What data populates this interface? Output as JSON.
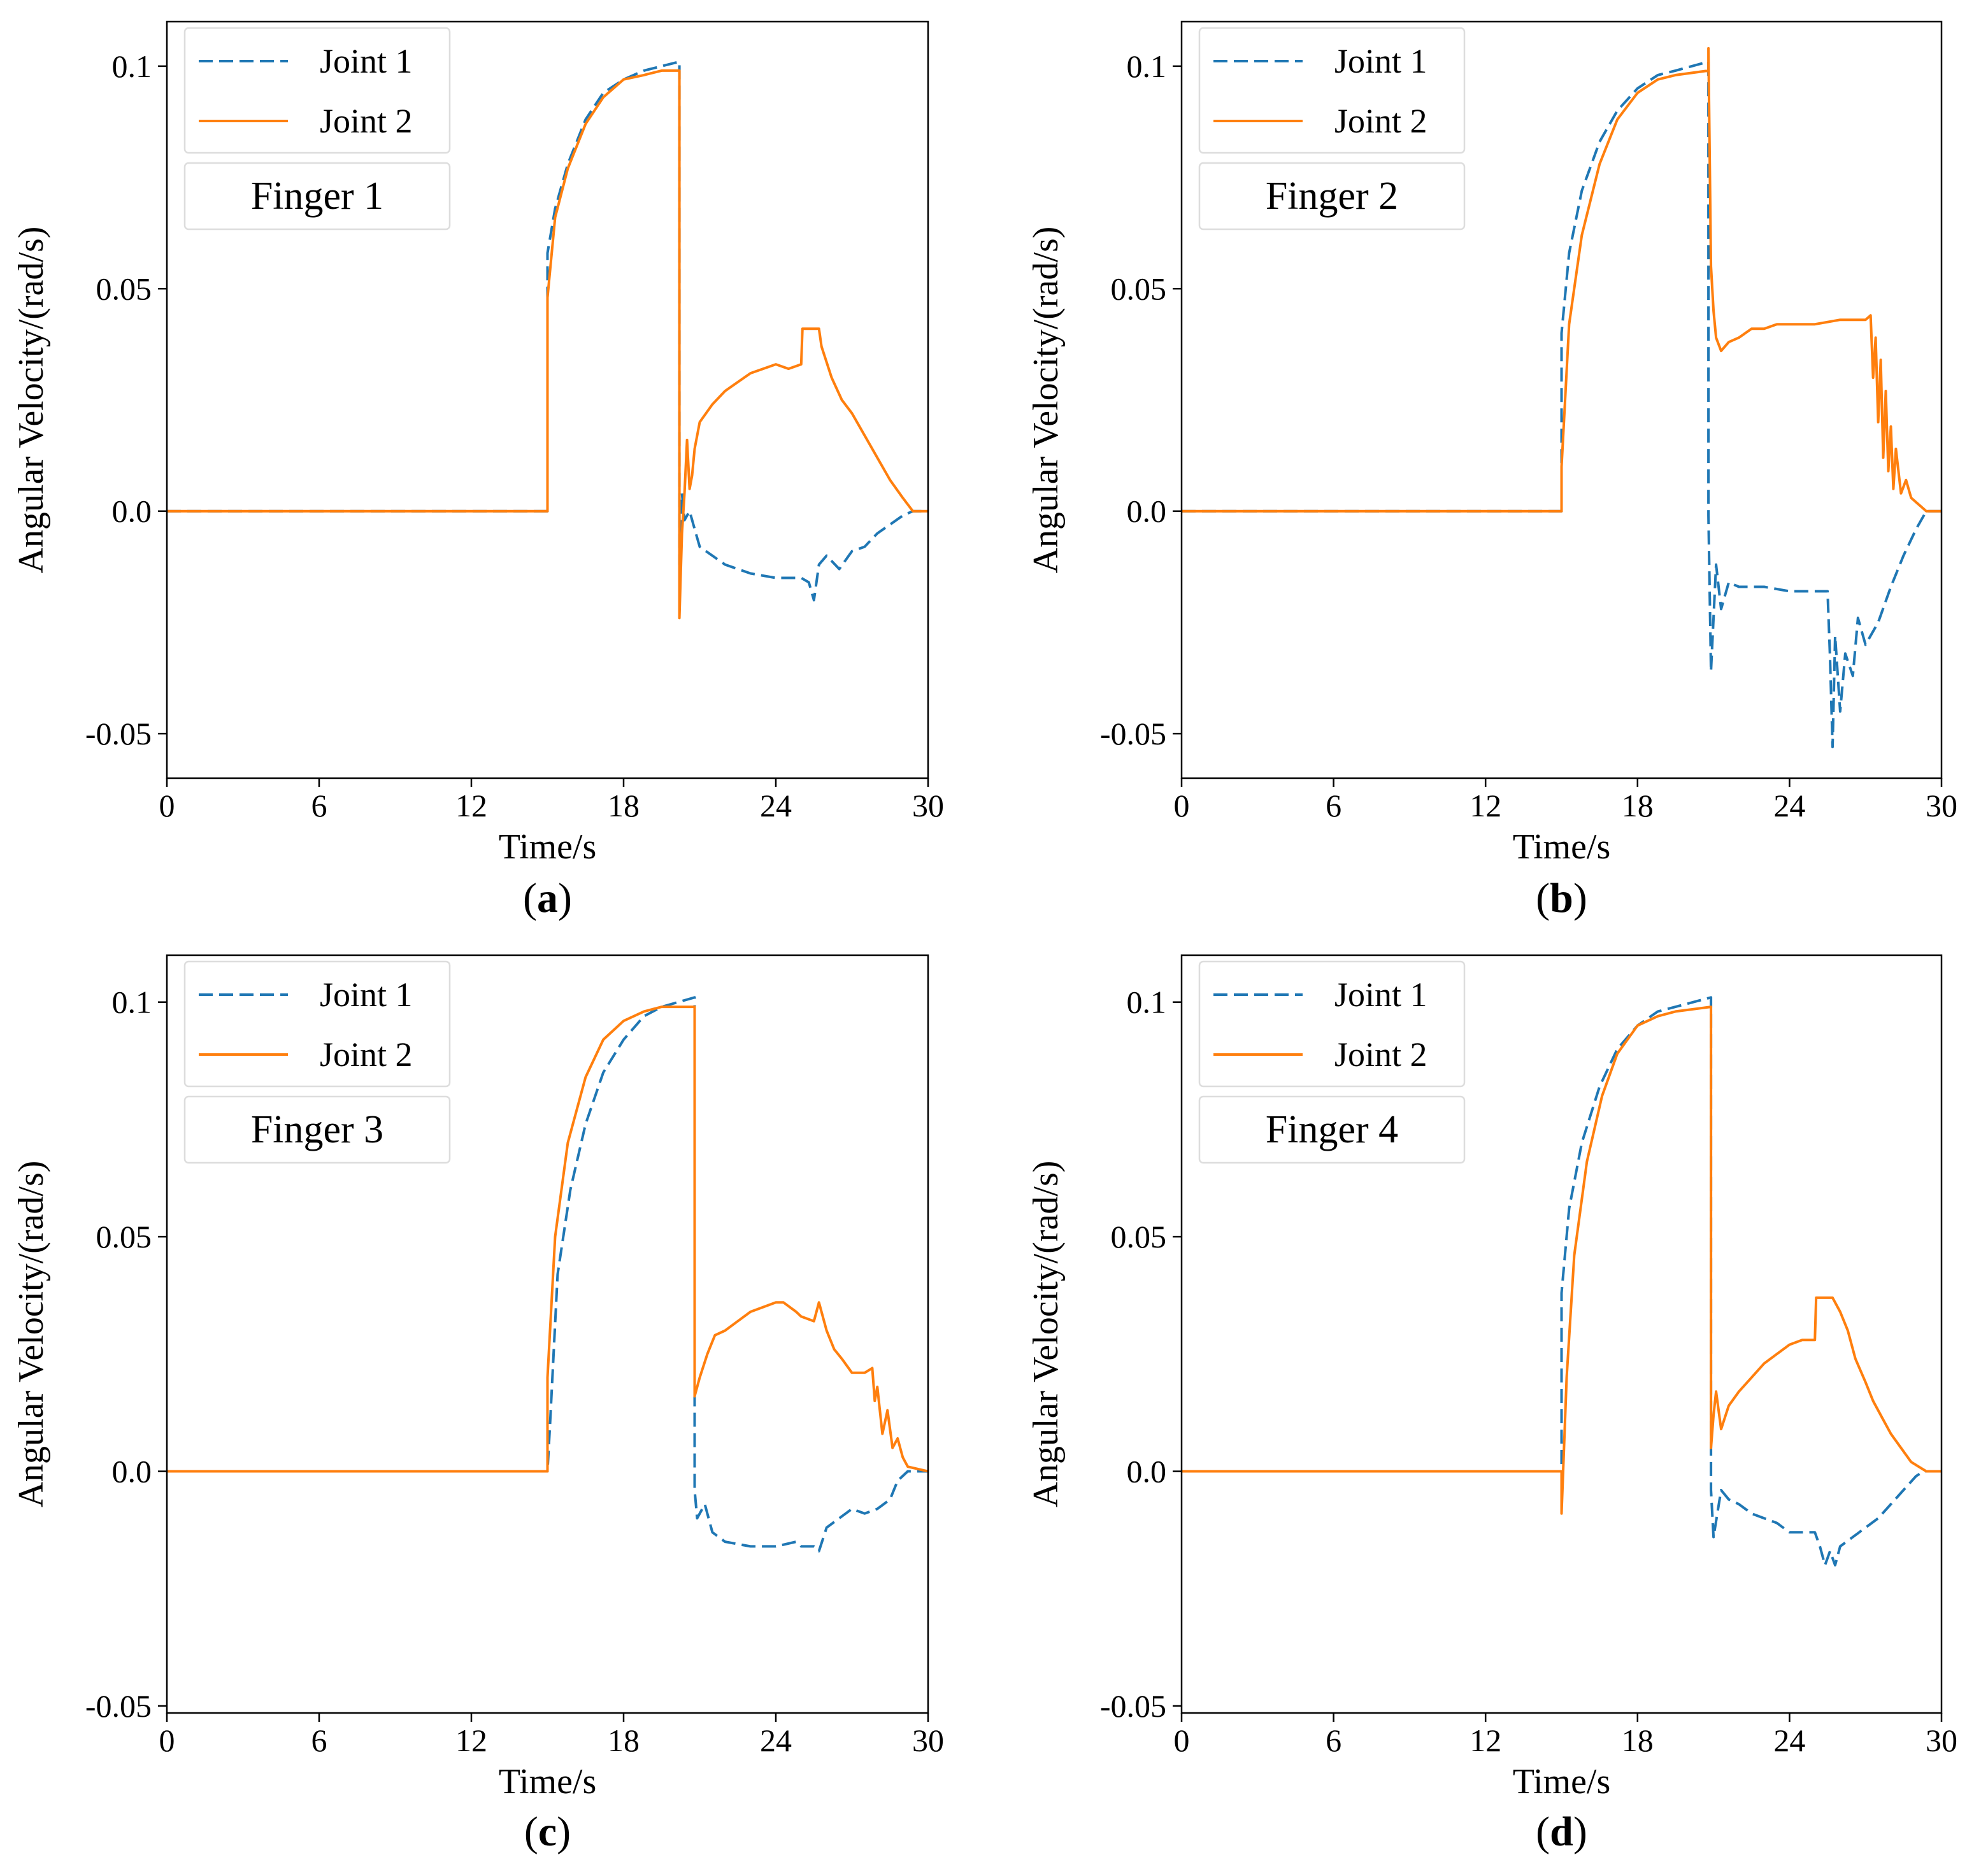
{
  "colors": {
    "joint1": "#1f77b4",
    "joint2": "#ff7f0e",
    "axis": "#000000",
    "legend_border": "#dddddd"
  },
  "chart_data": [
    {
      "type": "line",
      "panel": "a",
      "panel_label": {
        "open": "(",
        "letter": "a",
        "close": ")"
      },
      "annotation": "Finger 1",
      "xlabel": "Time/s",
      "ylabel": "Angular Velocity/(rad/s)",
      "xlim": [
        0,
        30
      ],
      "ylim": [
        -0.06,
        0.11
      ],
      "xticks": [
        0,
        6,
        12,
        18,
        24,
        30
      ],
      "xtick_labels": [
        "0",
        "6",
        "12",
        "18",
        "24",
        "30"
      ],
      "yticks": [
        -0.05,
        0,
        0.05,
        0.1
      ],
      "ytick_labels": [
        "-0.05",
        "0.0",
        "0.05",
        "0.1"
      ],
      "legend": [
        "Joint 1",
        "Joint 2"
      ],
      "series": [
        {
          "name": "Joint 1",
          "style": "dashed",
          "x": [
            0,
            15,
            15.0,
            15.3,
            15.8,
            16.5,
            17.2,
            18,
            18.8,
            19.5,
            20.2,
            20.2,
            20.3,
            20.4,
            20.6,
            20.8,
            21.0,
            21.5,
            22,
            23,
            24,
            24.5,
            25.0,
            25.3,
            25.5,
            25.7,
            26.0,
            26.5,
            27,
            27.5,
            28,
            28.5,
            29,
            29.4,
            30
          ],
          "y": [
            0,
            0,
            0.058,
            0.068,
            0.078,
            0.088,
            0.094,
            0.097,
            0.099,
            0.1,
            0.101,
            -0.012,
            0.004,
            -0.002,
            0.0,
            -0.004,
            -0.008,
            -0.01,
            -0.012,
            -0.014,
            -0.015,
            -0.015,
            -0.015,
            -0.016,
            -0.02,
            -0.012,
            -0.01,
            -0.013,
            -0.009,
            -0.008,
            -0.005,
            -0.003,
            -0.001,
            0,
            0
          ]
        },
        {
          "name": "Joint 2",
          "style": "solid",
          "x": [
            0,
            15,
            15.0,
            15.3,
            15.8,
            16.5,
            17.2,
            18,
            18.8,
            19.5,
            20.2,
            20.2,
            20.3,
            20.4,
            20.5,
            20.6,
            20.7,
            20.8,
            21.0,
            21.5,
            22,
            22.5,
            23,
            23.5,
            24,
            24.5,
            25.0,
            25.05,
            25.7,
            25.8,
            26.2,
            26.6,
            27,
            27.5,
            28,
            28.5,
            29,
            29.4,
            30
          ],
          "y": [
            0,
            0,
            0.048,
            0.066,
            0.077,
            0.087,
            0.093,
            0.097,
            0.098,
            0.099,
            0.099,
            -0.024,
            -0.005,
            0.004,
            0.016,
            0.005,
            0.008,
            0.014,
            0.02,
            0.024,
            0.027,
            0.029,
            0.031,
            0.032,
            0.033,
            0.032,
            0.033,
            0.041,
            0.041,
            0.037,
            0.03,
            0.025,
            0.022,
            0.017,
            0.012,
            0.007,
            0.003,
            0,
            0
          ]
        }
      ]
    },
    {
      "type": "line",
      "panel": "b",
      "panel_label": {
        "open": "(",
        "letter": "b",
        "close": ")"
      },
      "annotation": "Finger 2",
      "xlabel": "Time/s",
      "ylabel": "Angular Velocity/(rad/s)",
      "xlim": [
        0,
        30
      ],
      "ylim": [
        -0.06,
        0.11
      ],
      "xticks": [
        0,
        6,
        12,
        18,
        24,
        30
      ],
      "xtick_labels": [
        "0",
        "6",
        "12",
        "18",
        "24",
        "30"
      ],
      "yticks": [
        -0.05,
        0,
        0.05,
        0.1
      ],
      "ytick_labels": [
        "-0.05",
        "0.0",
        "0.05",
        "0.1"
      ],
      "legend": [
        "Joint 1",
        "Joint 2"
      ],
      "series": [
        {
          "name": "Joint 1",
          "style": "dashed",
          "x": [
            0,
            15,
            15.0,
            15.3,
            15.8,
            16.5,
            17.2,
            18,
            18.8,
            19.5,
            20.8,
            20.8,
            20.9,
            21.1,
            21.3,
            21.6,
            22,
            23,
            24,
            25,
            25.5,
            25.6,
            25.7,
            25.8,
            26.0,
            26.2,
            26.5,
            26.7,
            27,
            27.5,
            28,
            28.5,
            29,
            29.4,
            30
          ],
          "y": [
            0,
            0,
            0.04,
            0.058,
            0.072,
            0.083,
            0.09,
            0.095,
            0.098,
            0.099,
            0.101,
            -0.001,
            -0.036,
            -0.012,
            -0.022,
            -0.016,
            -0.017,
            -0.017,
            -0.018,
            -0.018,
            -0.018,
            -0.033,
            -0.053,
            -0.028,
            -0.045,
            -0.032,
            -0.037,
            -0.024,
            -0.03,
            -0.025,
            -0.017,
            -0.01,
            -0.004,
            0,
            0
          ]
        },
        {
          "name": "Joint 2",
          "style": "solid",
          "x": [
            0,
            15,
            15.0,
            15.3,
            15.8,
            16.5,
            17.2,
            18,
            18.8,
            19.5,
            20.8,
            20.8,
            20.9,
            21.0,
            21.1,
            21.3,
            21.6,
            22,
            22.5,
            23,
            23.5,
            24,
            25,
            26,
            27,
            27.2,
            27.3,
            27.4,
            27.5,
            27.6,
            27.7,
            27.8,
            27.9,
            28.0,
            28.1,
            28.2,
            28.4,
            28.6,
            28.8,
            29.0,
            29.2,
            29.4,
            30
          ],
          "y": [
            0,
            0,
            0.01,
            0.042,
            0.062,
            0.078,
            0.088,
            0.094,
            0.097,
            0.098,
            0.099,
            0.104,
            0.055,
            0.045,
            0.039,
            0.036,
            0.038,
            0.039,
            0.041,
            0.041,
            0.042,
            0.042,
            0.042,
            0.043,
            0.043,
            0.044,
            0.03,
            0.039,
            0.02,
            0.034,
            0.012,
            0.027,
            0.009,
            0.019,
            0.005,
            0.014,
            0.004,
            0.007,
            0.003,
            0.002,
            0.001,
            0,
            0
          ]
        }
      ]
    },
    {
      "type": "line",
      "panel": "c",
      "panel_label": {
        "open": "(",
        "letter": "c",
        "close": ")"
      },
      "annotation": "Finger 3",
      "xlabel": "Time/s",
      "ylabel": "Angular Velocity/(rad/s)",
      "xlim": [
        0,
        30
      ],
      "ylim": [
        -0.0515,
        0.11
      ],
      "xticks": [
        0,
        6,
        12,
        18,
        24,
        30
      ],
      "xtick_labels": [
        "0",
        "6",
        "12",
        "18",
        "24",
        "30"
      ],
      "yticks": [
        -0.05,
        0,
        0.05,
        0.1
      ],
      "ytick_labels": [
        "-0.05",
        "0.0",
        "0.05",
        "0.1"
      ],
      "legend": [
        "Joint 1",
        "Joint 2"
      ],
      "series": [
        {
          "name": "Joint 1",
          "style": "dashed",
          "x": [
            0,
            15,
            15.1,
            15.4,
            15.9,
            16.5,
            17.2,
            18,
            18.8,
            19.5,
            20.8,
            20.8,
            20.9,
            21.2,
            21.5,
            22,
            23,
            24,
            24.8,
            25.0,
            25.5,
            25.7,
            26.0,
            26.5,
            27,
            27.5,
            28,
            28.5,
            28.8,
            29.2,
            30
          ],
          "y": [
            0,
            0,
            0.01,
            0.042,
            0.06,
            0.074,
            0.085,
            0.092,
            0.097,
            0.099,
            0.101,
            -0.004,
            -0.01,
            -0.007,
            -0.013,
            -0.015,
            -0.016,
            -0.016,
            -0.015,
            -0.016,
            -0.016,
            -0.017,
            -0.012,
            -0.01,
            -0.008,
            -0.009,
            -0.008,
            -0.006,
            -0.002,
            0,
            0
          ]
        },
        {
          "name": "Joint 2",
          "style": "solid",
          "x": [
            0,
            15,
            15.0,
            15.3,
            15.8,
            16.5,
            17.2,
            18,
            18.8,
            19.5,
            20.8,
            20.8,
            21.0,
            21.3,
            21.6,
            22,
            22.5,
            23,
            23.5,
            24,
            24.3,
            24.8,
            25.0,
            25.5,
            25.7,
            26.0,
            26.3,
            26.6,
            27,
            27.5,
            27.8,
            27.9,
            28.0,
            28.2,
            28.4,
            28.6,
            28.8,
            29.0,
            29.2,
            30
          ],
          "y": [
            0,
            0,
            0.02,
            0.05,
            0.07,
            0.084,
            0.092,
            0.096,
            0.098,
            0.099,
            0.099,
            0.016,
            0.02,
            0.025,
            0.029,
            0.03,
            0.032,
            0.034,
            0.035,
            0.036,
            0.036,
            0.034,
            0.033,
            0.032,
            0.036,
            0.03,
            0.026,
            0.024,
            0.021,
            0.021,
            0.022,
            0.015,
            0.018,
            0.008,
            0.013,
            0.005,
            0.007,
            0.003,
            0.001,
            0
          ]
        }
      ]
    },
    {
      "type": "line",
      "panel": "d",
      "panel_label": {
        "open": "(",
        "letter": "d",
        "close": ")"
      },
      "annotation": "Finger 4",
      "xlabel": "Time/s",
      "ylabel": "Angular Velocity/(rad/s)",
      "xlim": [
        0,
        30
      ],
      "ylim": [
        -0.0515,
        0.11
      ],
      "xticks": [
        0,
        6,
        12,
        18,
        24,
        30
      ],
      "xtick_labels": [
        "0",
        "6",
        "12",
        "18",
        "24",
        "30"
      ],
      "yticks": [
        -0.05,
        0,
        0.05,
        0.1
      ],
      "ytick_labels": [
        "-0.05",
        "0.0",
        "0.05",
        "0.1"
      ],
      "legend": [
        "Joint 1",
        "Joint 2"
      ],
      "series": [
        {
          "name": "Joint 1",
          "style": "dashed",
          "x": [
            0,
            15,
            15.0,
            15.3,
            15.8,
            16.5,
            17.2,
            18,
            18.8,
            19.5,
            20.9,
            20.9,
            21.0,
            21.3,
            21.6,
            22,
            22.5,
            23,
            23.5,
            24,
            25,
            25.2,
            25.4,
            25.6,
            25.8,
            26.0,
            26.5,
            27,
            27.5,
            28,
            28.5,
            29,
            29.3,
            30
          ],
          "y": [
            0,
            0,
            0.038,
            0.056,
            0.07,
            0.082,
            0.09,
            0.095,
            0.098,
            0.099,
            0.101,
            -0.004,
            -0.014,
            -0.004,
            -0.006,
            -0.007,
            -0.009,
            -0.01,
            -0.011,
            -0.013,
            -0.013,
            -0.016,
            -0.02,
            -0.017,
            -0.02,
            -0.016,
            -0.014,
            -0.012,
            -0.01,
            -0.007,
            -0.004,
            -0.001,
            0,
            0
          ]
        },
        {
          "name": "Joint 2",
          "style": "solid",
          "x": [
            0,
            15,
            15.0,
            15.2,
            15.5,
            16.0,
            16.6,
            17.2,
            18,
            18.8,
            19.5,
            20.9,
            20.9,
            21.0,
            21.1,
            21.3,
            21.6,
            22,
            22.5,
            23,
            23.5,
            24,
            24.5,
            25,
            25.05,
            25.7,
            26.0,
            26.3,
            26.6,
            27,
            27.3,
            27.7,
            28,
            28.4,
            28.8,
            29.1,
            29.4,
            30
          ],
          "y": [
            0,
            0,
            -0.009,
            0.02,
            0.046,
            0.066,
            0.08,
            0.089,
            0.095,
            0.097,
            0.098,
            0.099,
            0.005,
            0.012,
            0.017,
            0.009,
            0.014,
            0.017,
            0.02,
            0.023,
            0.025,
            0.027,
            0.028,
            0.028,
            0.037,
            0.037,
            0.034,
            0.03,
            0.024,
            0.019,
            0.015,
            0.011,
            0.008,
            0.005,
            0.002,
            0.001,
            0,
            0
          ]
        }
      ]
    }
  ]
}
